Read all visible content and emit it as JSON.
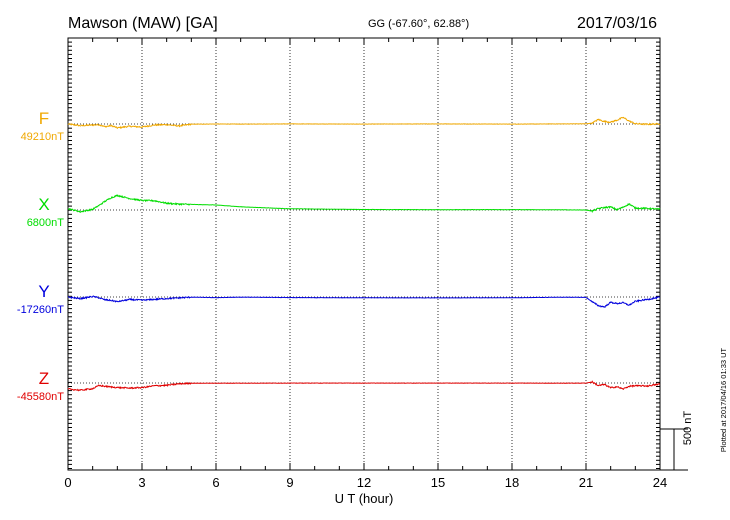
{
  "header": {
    "station": "Mawson (MAW)  [GA]",
    "coords": "GG (-67.60°,  62.88°)",
    "date": "2017/03/16"
  },
  "footer_note": "Plotted at 2017/04/16 01:33 UT",
  "scale_bar": {
    "label": "500 nT",
    "value": 500
  },
  "colors": {
    "F": "#f0a800",
    "X": "#00dd00",
    "Y": "#0000dd",
    "Z": "#e00000"
  },
  "chart_data": {
    "type": "line",
    "xlabel": "U T (hour)",
    "xlim": [
      0,
      24
    ],
    "x_ticks": [
      0,
      3,
      6,
      9,
      12,
      15,
      18,
      21,
      24
    ],
    "tick_labels": [
      "0",
      "3",
      "6",
      "9",
      "12",
      "15",
      "18",
      "21",
      "24"
    ],
    "units": "nT",
    "grid": true,
    "x": [
      0,
      0.5,
      1,
      1.25,
      1.5,
      1.75,
      2,
      2.5,
      3,
      3.5,
      4,
      4.5,
      5,
      6,
      7,
      9,
      12,
      15,
      18,
      20,
      21,
      21.25,
      21.5,
      21.75,
      22,
      22.25,
      22.5,
      22.75,
      23,
      23.5,
      24
    ],
    "series": [
      {
        "name": "F",
        "baseline_label": "49210nT",
        "values": [
          49210,
          49189,
          49198,
          49202,
          49177,
          49190,
          49163,
          49182,
          49173,
          49198,
          49202,
          49186,
          49208,
          49210,
          49209,
          49211,
          49209,
          49211,
          49209,
          49211,
          49212,
          49222,
          49265,
          49240,
          49233,
          49256,
          49290,
          49246,
          49213,
          49206,
          49212
        ]
      },
      {
        "name": "X",
        "baseline_label": "6800nT",
        "values": [
          6817,
          6778,
          6808,
          6854,
          6906,
          6950,
          6978,
          6940,
          6916,
          6913,
          6882,
          6872,
          6868,
          6861,
          6839,
          6815,
          6806,
          6804,
          6805,
          6802,
          6800,
          6786,
          6818,
          6830,
          6837,
          6804,
          6833,
          6874,
          6824,
          6819,
          6809
        ]
      },
      {
        "name": "Y",
        "baseline_label": "-17260nT",
        "values": [
          -17261,
          -17280,
          -17253,
          -17269,
          -17294,
          -17302,
          -17317,
          -17290,
          -17299,
          -17289,
          -17279,
          -17271,
          -17262,
          -17268,
          -17262,
          -17267,
          -17270,
          -17271,
          -17269,
          -17263,
          -17265,
          -17318,
          -17366,
          -17381,
          -17325,
          -17340,
          -17330,
          -17360,
          -17313,
          -17289,
          -17262
        ]
      },
      {
        "name": "Z",
        "baseline_label": "-45580nT",
        "values": [
          -45653,
          -45668,
          -45649,
          -45611,
          -45620,
          -45629,
          -45635,
          -45642,
          -45636,
          -45614,
          -45608,
          -45590,
          -45583,
          -45582,
          -45582,
          -45581,
          -45581,
          -45581,
          -45581,
          -45582,
          -45581,
          -45567,
          -45612,
          -45598,
          -45639,
          -45625,
          -45654,
          -45620,
          -45614,
          -45616,
          -45592
        ]
      }
    ]
  }
}
